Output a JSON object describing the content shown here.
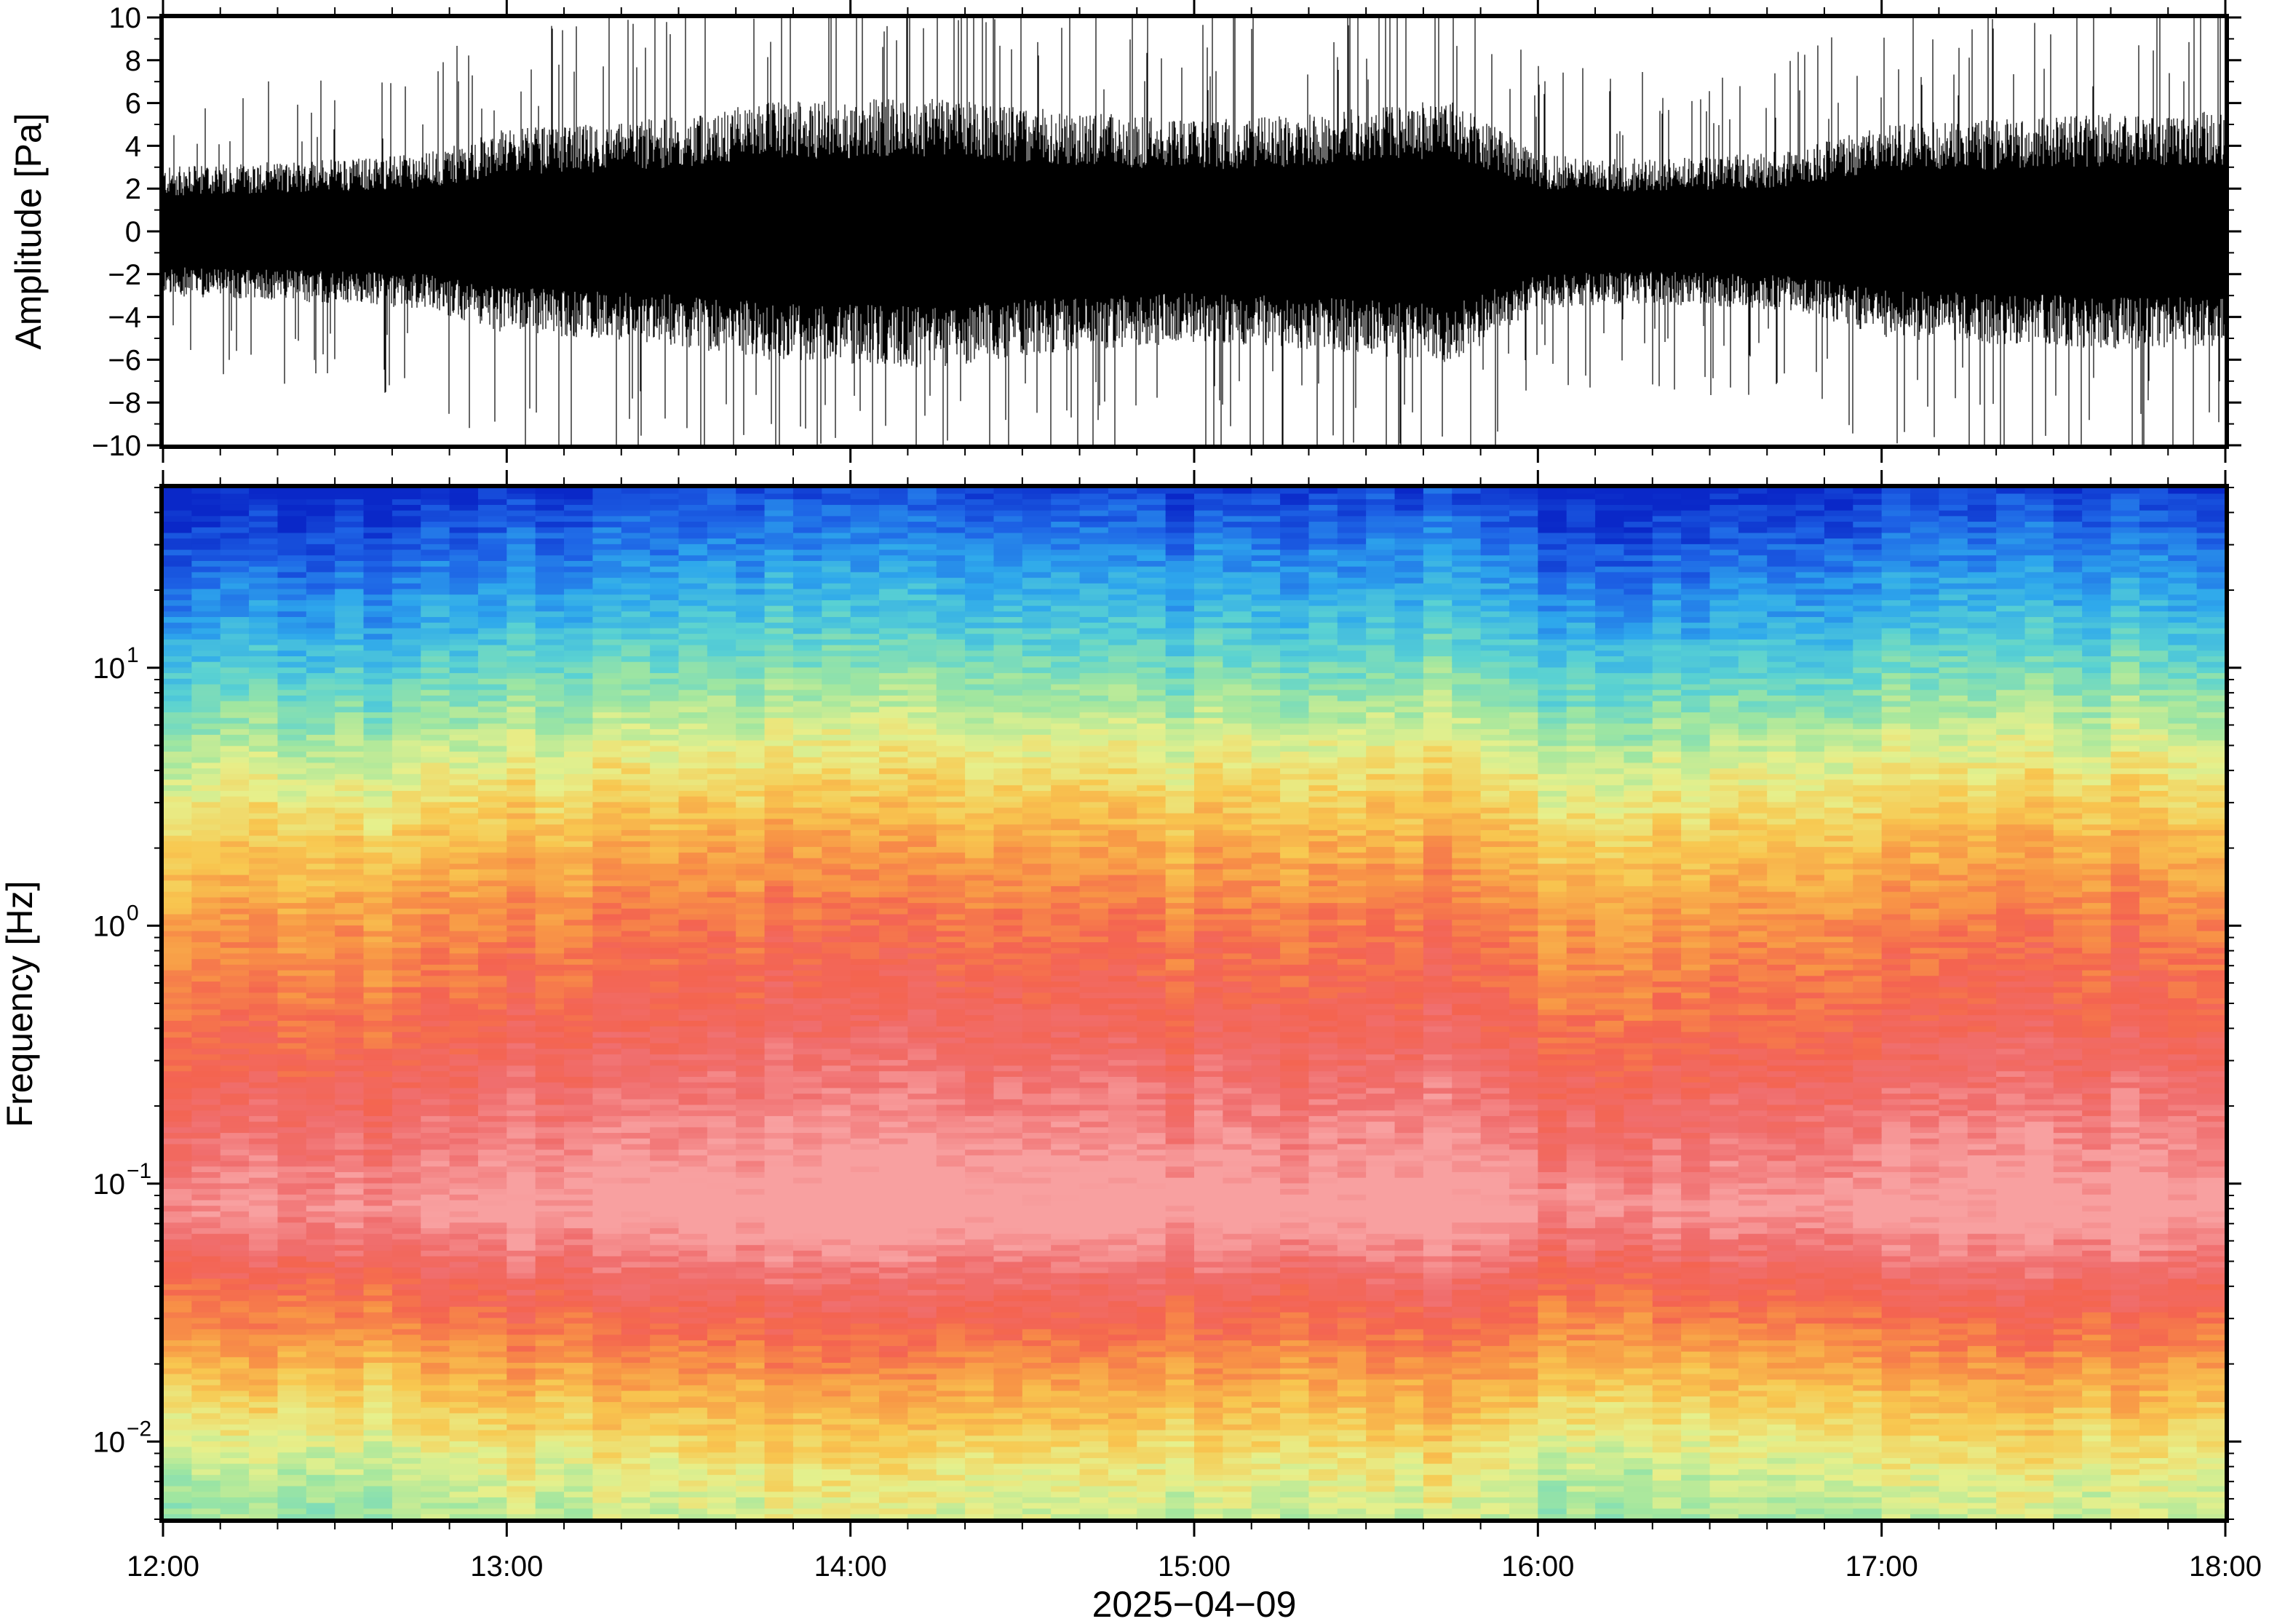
{
  "chart_data": [
    {
      "type": "line",
      "panel": "waveform",
      "ylabel": "Amplitude [Pa]",
      "ylim": [
        -10,
        10
      ],
      "yticks": [
        -10,
        -8,
        -6,
        -4,
        -2,
        0,
        2,
        4,
        6,
        8,
        10
      ],
      "ytick_labels": [
        "−10",
        "−8",
        "−6",
        "−4",
        "−2",
        "0",
        "2",
        "4",
        "6",
        "8",
        "10"
      ],
      "xlim": [
        "12:00",
        "18:00"
      ],
      "series": [
        {
          "description_values": "envelope of amplitude (peak, Pa) sampled every 15 min from 12:00 to 18:00",
          "x": [
            "12:00",
            "12:15",
            "12:30",
            "12:45",
            "13:00",
            "13:15",
            "13:30",
            "13:45",
            "14:00",
            "14:15",
            "14:30",
            "14:45",
            "15:00",
            "15:15",
            "15:30",
            "15:45",
            "16:00",
            "16:15",
            "16:30",
            "16:45",
            "17:00",
            "17:15",
            "17:30",
            "17:45",
            "18:00"
          ],
          "values": [
            3.0,
            3.2,
            3.4,
            3.6,
            4.8,
            5.0,
            5.4,
            6.0,
            6.2,
            6.4,
            5.8,
            5.5,
            5.2,
            5.4,
            5.8,
            6.2,
            3.6,
            3.4,
            3.5,
            3.8,
            5.0,
            5.2,
            5.4,
            5.6,
            5.6
          ]
        }
      ],
      "color": "#000000"
    },
    {
      "type": "heatmap",
      "panel": "spectrogram",
      "ylabel": "Frequency [Hz]",
      "yscale": "log",
      "ylim": [
        0.005,
        50
      ],
      "yticks": [
        0.01,
        0.1,
        1,
        10
      ],
      "ytick_labels": [
        {
          "base": "10",
          "exp": "−2"
        },
        {
          "base": "10",
          "exp": "−1"
        },
        {
          "base": "10",
          "exp": "0"
        },
        {
          "base": "10",
          "exp": "1"
        }
      ],
      "xlabel": "2025−04−09",
      "xlim": [
        "12:00",
        "18:00"
      ],
      "xticks": [
        "12:00",
        "13:00",
        "14:00",
        "15:00",
        "16:00",
        "17:00",
        "18:00"
      ],
      "colormap": [
        "#0a28c8",
        "#1e64e6",
        "#2ea8ec",
        "#5ad2d2",
        "#a0e6a0",
        "#e6f08c",
        "#f8c850",
        "#f89646",
        "#f46450",
        "#f06e6e",
        "#f8a0a0"
      ],
      "profile": [
        {
          "freq": 50,
          "level": 0.0
        },
        {
          "freq": 30,
          "level": 0.1
        },
        {
          "freq": 15,
          "level": 0.22
        },
        {
          "freq": 8,
          "level": 0.35
        },
        {
          "freq": 4,
          "level": 0.5
        },
        {
          "freq": 2,
          "level": 0.62
        },
        {
          "freq": 1,
          "level": 0.72
        },
        {
          "freq": 0.4,
          "level": 0.8
        },
        {
          "freq": 0.15,
          "level": 0.92
        },
        {
          "freq": 0.08,
          "level": 1.0
        },
        {
          "freq": 0.04,
          "level": 0.82
        },
        {
          "freq": 0.025,
          "level": 0.72
        },
        {
          "freq": 0.015,
          "level": 0.6
        },
        {
          "freq": 0.008,
          "level": 0.48
        },
        {
          "freq": 0.005,
          "level": 0.42
        }
      ]
    }
  ]
}
